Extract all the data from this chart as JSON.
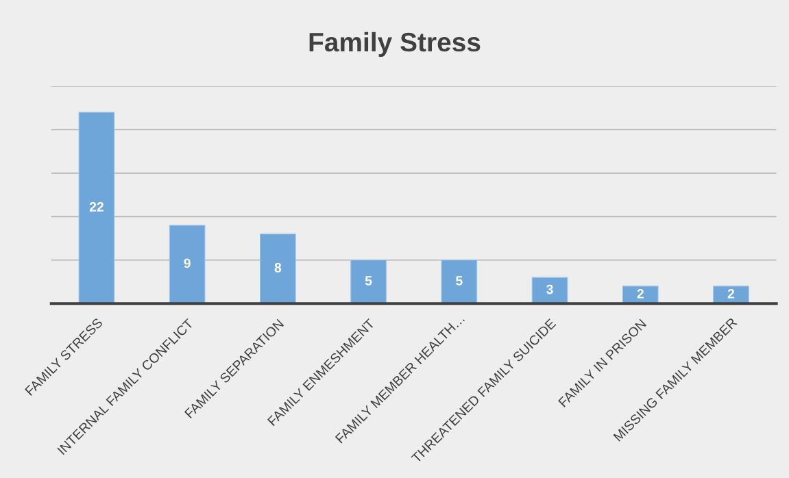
{
  "chart_data": {
    "type": "bar",
    "title": "Family Stress",
    "categories": [
      "FAMILY STRESS",
      "INTERNAL FAMILY CONFLICT",
      "FAMILY SEPARATION",
      "FAMILY ENMESHMENT",
      "FAMILY MEMBER HEALTH…",
      "THREATENED FAMILY SUICIDE",
      "FAMILY IN PRISON",
      "MISSING FAMILY MEMBER"
    ],
    "values": [
      22,
      9,
      8,
      5,
      5,
      3,
      2,
      2
    ],
    "color": "#6fa6d9",
    "ylim": [
      0,
      25
    ],
    "yticks": [
      {
        "value": 0,
        "label": null
      },
      {
        "value": 5,
        "label": null
      },
      {
        "value": 10,
        "label": null
      },
      {
        "value": 15,
        "label": null
      },
      {
        "value": 20,
        "label": null
      },
      {
        "value": 25,
        "label": null
      }
    ],
    "grid": "y",
    "tick_labels": "x",
    "data_labels": true
  }
}
